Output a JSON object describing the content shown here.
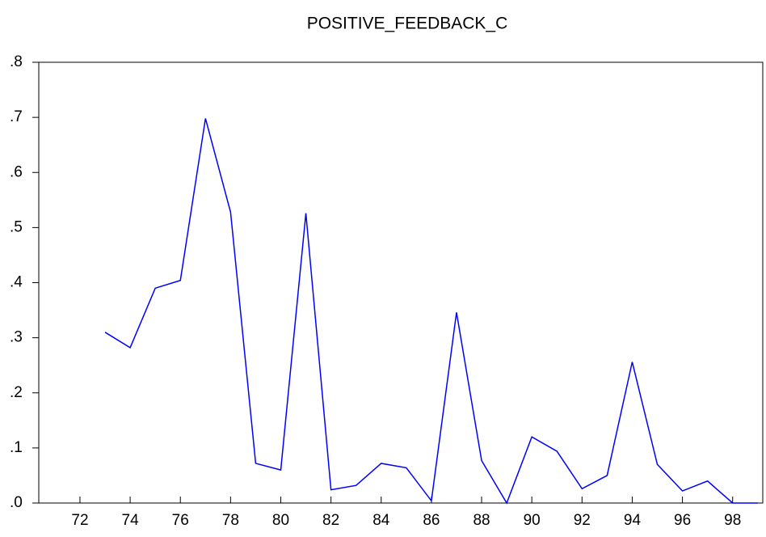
{
  "chart_data": {
    "type": "line",
    "title": "POSITIVE_FEEDBACK_C",
    "x": [
      73,
      74,
      75,
      76,
      77,
      78,
      79,
      80,
      81,
      82,
      83,
      84,
      85,
      86,
      87,
      88,
      89,
      90,
      91,
      92,
      93,
      94,
      95,
      96,
      97,
      98,
      99
    ],
    "series": [
      {
        "name": "POSITIVE_FEEDBACK_C",
        "color": "#0000ff",
        "values": [
          0.31,
          0.282,
          0.39,
          0.404,
          0.698,
          0.528,
          0.072,
          0.06,
          0.526,
          0.024,
          0.032,
          0.072,
          0.064,
          0.004,
          0.346,
          0.077,
          0.0,
          0.12,
          0.094,
          0.026,
          0.05,
          0.256,
          0.07,
          0.022,
          0.04,
          0.0,
          0.0
        ]
      }
    ],
    "xlim": [
      70.36,
      99.2
    ],
    "xticks": [
      72,
      74,
      76,
      78,
      80,
      82,
      84,
      86,
      88,
      90,
      92,
      94,
      96,
      98
    ],
    "ylim": [
      0,
      0.8
    ],
    "yticks": [
      {
        "value": 0,
        "label": ".0"
      },
      {
        "value": 0.1,
        "label": ".1"
      },
      {
        "value": 0.2,
        "label": ".2"
      },
      {
        "value": 0.3,
        "label": ".3"
      },
      {
        "value": 0.4,
        "label": ".4"
      },
      {
        "value": 0.5,
        "label": ".5"
      },
      {
        "value": 0.6,
        "label": ".6"
      },
      {
        "value": 0.7,
        "label": ".7"
      },
      {
        "value": 0.8,
        "label": ".8"
      }
    ]
  }
}
